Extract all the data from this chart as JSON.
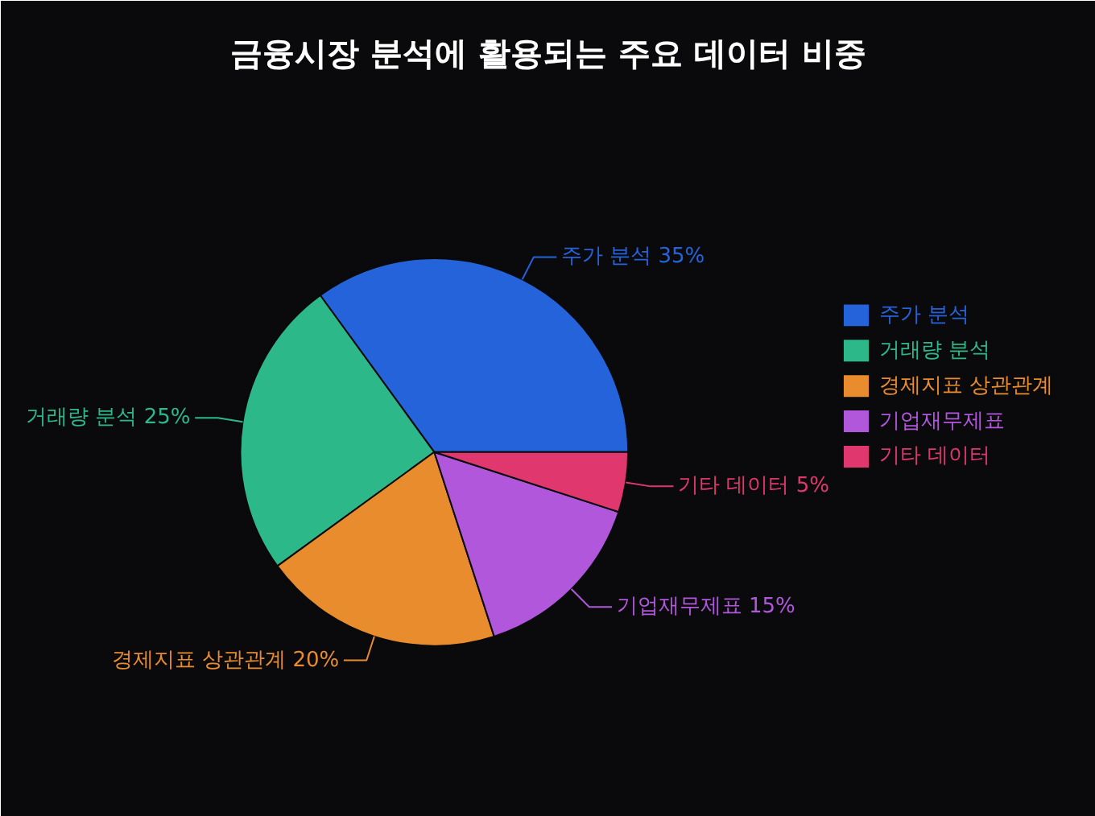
{
  "chart_data": {
    "type": "pie",
    "title": "금융시장 분석에 활용되는 주요 데이터 비중",
    "categories": [
      "주가 분석",
      "거래량 분석",
      "경제지표 상관관계",
      "기업재무제표",
      "기타 데이터"
    ],
    "values": [
      35,
      25,
      20,
      15,
      5
    ],
    "value_labels": [
      "35%",
      "25%",
      "20%",
      "15%",
      "5%"
    ],
    "colors": [
      "#2563db",
      "#2db88a",
      "#e88c2e",
      "#b057dc",
      "#e0386e"
    ],
    "legend": "right"
  }
}
